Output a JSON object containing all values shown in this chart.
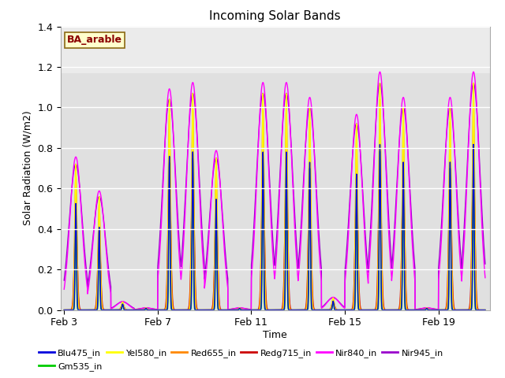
{
  "title": "Incoming Solar Bands",
  "xlabel": "Time",
  "ylabel": "Solar Radiation (W/m2)",
  "annotation": "BA_arable",
  "ylim": [
    0,
    1.4
  ],
  "background_color": "#e8e8e8",
  "background_color2": "#d8d8d8",
  "bg_band_threshold": 1.17,
  "grid_color": "#cccccc",
  "series": [
    {
      "name": "Blu475_in",
      "color": "#0000dd",
      "lw": 1.0
    },
    {
      "name": "Gm535_in",
      "color": "#00cc00",
      "lw": 1.0
    },
    {
      "name": "Yel580_in",
      "color": "#ffff00",
      "lw": 1.0
    },
    {
      "name": "Red655_in",
      "color": "#ff8800",
      "lw": 1.0
    },
    {
      "name": "Redg715_in",
      "color": "#cc0000",
      "lw": 1.0
    },
    {
      "name": "Nir840_in",
      "color": "#ff00ff",
      "lw": 1.0
    },
    {
      "name": "Nir945_in",
      "color": "#9900cc",
      "lw": 1.0
    }
  ],
  "xtick_labels": [
    "Feb 3",
    "Feb 7",
    "Feb 11",
    "Feb 15",
    "Feb 19"
  ],
  "xtick_positions": [
    3,
    7,
    11,
    15,
    19
  ],
  "ytick_positions": [
    0.0,
    0.2,
    0.4,
    0.6,
    0.8,
    1.0,
    1.2,
    1.4
  ],
  "day_peaks": {
    "0": 0.72,
    "1": 0.56,
    "2": 0.04,
    "3": 0.01,
    "4": 1.04,
    "5": 1.07,
    "6": 0.75,
    "7": 0.01,
    "8": 1.07,
    "9": 1.07,
    "10": 1.0,
    "11": 0.06,
    "12": 0.92,
    "13": 1.12,
    "14": 1.0,
    "15": 0.01,
    "16": 1.0,
    "17": 1.12
  },
  "series_scales": {
    "Yel580_in": 1.0,
    "Red655_in": 0.93,
    "Redg715_in": 0.66,
    "Blu475_in": 0.73,
    "Gm535_in": 0.7,
    "Nir840_in": 1.05,
    "Nir945_in": 1.0
  },
  "series_widths": {
    "Yel580_in": 0.04,
    "Red655_in": 0.05,
    "Redg715_in": 0.06,
    "Blu475_in": 0.03,
    "Gm535_in": 0.025,
    "Nir840_in": 0.25,
    "Nir945_in": 0.28
  }
}
